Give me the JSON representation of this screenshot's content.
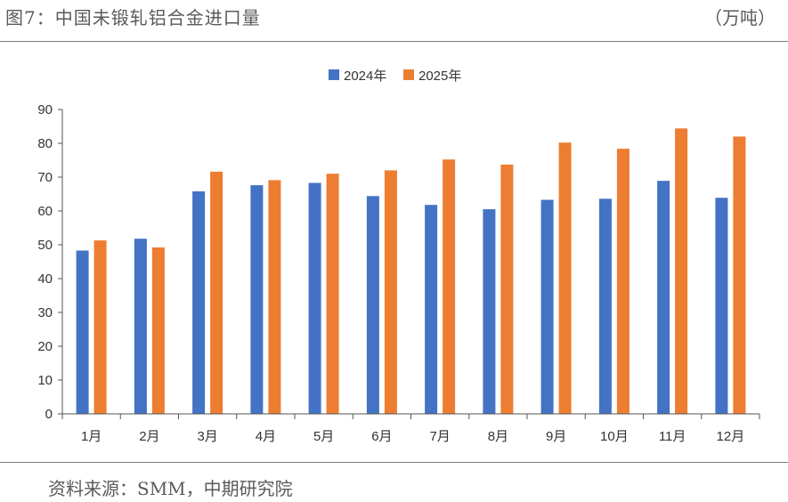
{
  "header": {
    "title": "图7：中国未锻轧铝合金进口量",
    "unit": "（万吨）"
  },
  "footer": {
    "source": "资料来源：SMM，中期研究院"
  },
  "colors": {
    "series_2024": "#4472c4",
    "series_2025": "#ed7d31"
  },
  "chart_data": {
    "type": "bar",
    "title": "中国未锻轧铝合金进口量",
    "xlabel": "",
    "ylabel": "万吨",
    "ylim": [
      0,
      90
    ],
    "yticks": [
      0,
      10,
      20,
      30,
      40,
      50,
      60,
      70,
      80,
      90
    ],
    "grid": false,
    "legend_position": "top-center",
    "categories": [
      "1月",
      "2月",
      "3月",
      "4月",
      "5月",
      "6月",
      "7月",
      "8月",
      "9月",
      "10月",
      "11月",
      "12月"
    ],
    "series": [
      {
        "name": "2024年",
        "values": [
          48.3,
          51.8,
          65.8,
          67.6,
          68.3,
          64.4,
          61.8,
          60.5,
          63.3,
          63.6,
          68.9,
          63.9
        ]
      },
      {
        "name": "2025年",
        "values": [
          51.3,
          49.2,
          71.6,
          69.1,
          71.0,
          72.0,
          75.2,
          73.7,
          80.2,
          78.4,
          84.4,
          82.0
        ]
      }
    ]
  }
}
